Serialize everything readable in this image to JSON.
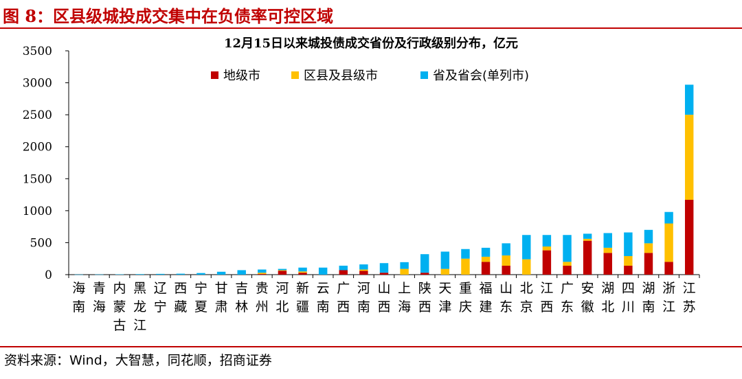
{
  "figure": {
    "title": "图 8：区县级城投成交集中在负债率可控区域",
    "source": "资料来源：Wind，大智慧，同花顺，招商证券"
  },
  "colors": {
    "title_red": "#c00000",
    "prefecture": "#c00000",
    "county": "#ffc000",
    "province": "#00b0f0"
  },
  "chart_data": {
    "type": "bar",
    "stacked": true,
    "title": "12月15日以来城投债成交省份及行政级别分布，亿元",
    "xlabel": "",
    "ylabel": "",
    "ylim": [
      0,
      3500
    ],
    "yticks": [
      0,
      500,
      1000,
      1500,
      2000,
      2500,
      3000,
      3500
    ],
    "grid": false,
    "legend_position": "top-center",
    "categories": [
      "海南",
      "青海",
      "内蒙古",
      "黑龙江",
      "辽宁",
      "西藏",
      "宁夏",
      "甘肃",
      "吉林",
      "贵州",
      "河北",
      "新疆",
      "云南",
      "广西",
      "河南",
      "山西",
      "上海",
      "陕西",
      "天津",
      "重庆",
      "福建",
      "山东",
      "北京",
      "江西",
      "广东",
      "安徽",
      "湖北",
      "四川",
      "湖南",
      "浙江",
      "江苏"
    ],
    "series": [
      {
        "name": "地级市",
        "color": "#c00000",
        "values": [
          0,
          0,
          0,
          0,
          0,
          0,
          0,
          0,
          0,
          10,
          60,
          30,
          0,
          70,
          60,
          30,
          0,
          30,
          0,
          0,
          200,
          140,
          0,
          380,
          140,
          530,
          340,
          140,
          340,
          200,
          1170
        ]
      },
      {
        "name": "区县及县级市",
        "color": "#ffc000",
        "values": [
          0,
          0,
          0,
          0,
          0,
          0,
          0,
          0,
          0,
          20,
          10,
          20,
          0,
          0,
          20,
          0,
          90,
          0,
          90,
          250,
          80,
          160,
          240,
          60,
          60,
          30,
          80,
          150,
          150,
          600,
          1330
        ]
      },
      {
        "name": "省及省会(单列市)",
        "color": "#00b0f0",
        "values": [
          2,
          3,
          5,
          8,
          12,
          15,
          25,
          45,
          70,
          50,
          20,
          60,
          110,
          70,
          80,
          150,
          105,
          290,
          270,
          150,
          140,
          190,
          380,
          180,
          420,
          80,
          230,
          370,
          210,
          180,
          470
        ]
      }
    ]
  }
}
